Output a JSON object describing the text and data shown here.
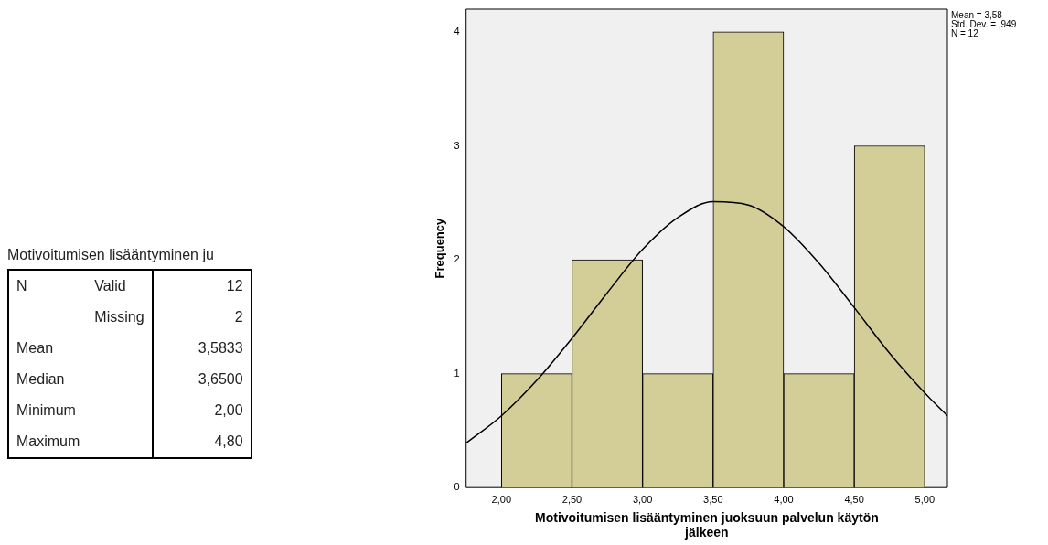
{
  "chart_data": [
    {
      "type": "other",
      "title": "Motivoitumisen lisääntyminen ju",
      "cell_labels": [
        [
          "N",
          "Valid",
          "12"
        ],
        [
          null,
          "Missing",
          "2"
        ],
        [
          "Mean",
          null,
          "3,5833"
        ],
        [
          "Median",
          null,
          "3,6500"
        ],
        [
          "Minimum",
          null,
          "2,00"
        ],
        [
          "Maximum",
          null,
          "4,80"
        ]
      ]
    },
    {
      "type": "histogram",
      "xlabel": "Motivoitumisen lisääntyminen juoksuun palvelun käytön jälkeen",
      "ylabel": "Frequency",
      "bins": [
        2,
        2.5,
        3,
        3.5,
        4,
        4.5,
        5
      ],
      "values": [
        1,
        2,
        1,
        4,
        1,
        3
      ],
      "color": "#d3ce97",
      "series": [
        {
          "type": "line",
          "color": "#000000",
          "x": [
            1.75,
            2,
            2.25,
            2.5,
            2.75,
            3,
            3.25,
            3.5,
            3.75,
            4,
            4.25,
            4.5,
            4.75,
            5,
            5.16
          ],
          "values": [
            0.39,
            0.63,
            0.94,
            1.31,
            1.71,
            2.09,
            2.37,
            2.51,
            2.48,
            2.29,
            1.97,
            1.58,
            1.18,
            0.83,
            0.63
          ]
        }
      ],
      "xlim": [
        1.75,
        5.16
      ],
      "xticks": [
        {
          "value": 2,
          "label": "2,00"
        },
        {
          "value": 2.5,
          "label": "2,50"
        },
        {
          "value": 3,
          "label": "3,00"
        },
        {
          "value": 3.5,
          "label": "3,50"
        },
        {
          "value": 4,
          "label": "4,00"
        },
        {
          "value": 4.5,
          "label": "4,50"
        },
        {
          "value": 5,
          "label": "5,00"
        }
      ],
      "ylim": [
        0,
        4.2
      ],
      "yticks": [
        0,
        1,
        2,
        3,
        4
      ],
      "grid": false,
      "legend": false,
      "annotations": [
        "Mean = 3,58",
        "Std. Dev. = ,949",
        "N = 12"
      ]
    }
  ]
}
